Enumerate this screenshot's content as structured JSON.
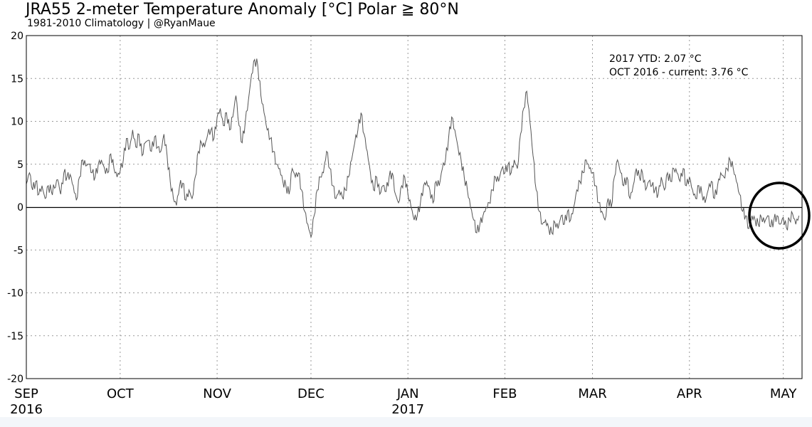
{
  "chart_data": {
    "type": "line",
    "title": "JRA55 2-meter Temperature Anomaly [°C] Polar ≧ 80°N",
    "subtitle": "1981-2010 Climatology | @RyanMaue",
    "xlabel": "",
    "ylabel": "",
    "ylim": [
      -20,
      20
    ],
    "yticks": [
      20,
      15,
      10,
      5,
      0,
      -5,
      -10,
      -15,
      -20
    ],
    "month_ticks": [
      {
        "label": "SEP",
        "year": "2016",
        "day": 0
      },
      {
        "label": "OCT",
        "year": "",
        "day": 30
      },
      {
        "label": "NOV",
        "year": "",
        "day": 61
      },
      {
        "label": "DEC",
        "year": "",
        "day": 91
      },
      {
        "label": "JAN",
        "year": "2017",
        "day": 122
      },
      {
        "label": "FEB",
        "year": "",
        "day": 153
      },
      {
        "label": "MAR",
        "year": "",
        "day": 181
      },
      {
        "label": "APR",
        "year": "",
        "day": 212
      },
      {
        "label": "MAY",
        "year": "",
        "day": 242
      }
    ],
    "x_domain_days": [
      0,
      248
    ],
    "grid": true,
    "zero_line": true,
    "annotations": [
      "2017 YTD: 2.07 °C",
      "OCT 2016 - current: 3.76 °C"
    ],
    "highlight": "circle around latest values (late APR – MAY)",
    "series": [
      {
        "color": "#555555",
        "points": [
          [
            0,
            2.7
          ],
          [
            1,
            4.0
          ],
          [
            2,
            2.0
          ],
          [
            3,
            3.0
          ],
          [
            4,
            1.5
          ],
          [
            5,
            2.5
          ],
          [
            6,
            1.0
          ],
          [
            7,
            2.5
          ],
          [
            8,
            1.8
          ],
          [
            9,
            2.2
          ],
          [
            10,
            3.2
          ],
          [
            11,
            1.5
          ],
          [
            12,
            4.0
          ],
          [
            13,
            3.5
          ],
          [
            14,
            3.8
          ],
          [
            15,
            2.5
          ],
          [
            16,
            0.8
          ],
          [
            17,
            3.5
          ],
          [
            18,
            5.5
          ],
          [
            19,
            4.8
          ],
          [
            20,
            5.0
          ],
          [
            21,
            4.0
          ],
          [
            22,
            3.5
          ],
          [
            23,
            5.0
          ],
          [
            24,
            5.5
          ],
          [
            25,
            4.5
          ],
          [
            26,
            4.0
          ],
          [
            27,
            6.2
          ],
          [
            28,
            4.5
          ],
          [
            29,
            3.5
          ],
          [
            30,
            4.2
          ],
          [
            31,
            5.5
          ],
          [
            32,
            8.0
          ],
          [
            33,
            6.8
          ],
          [
            34,
            9.0
          ],
          [
            35,
            7.0
          ],
          [
            36,
            8.5
          ],
          [
            37,
            6.0
          ],
          [
            38,
            7.5
          ],
          [
            39,
            7.8
          ],
          [
            40,
            6.5
          ],
          [
            41,
            8.2
          ],
          [
            42,
            7.0
          ],
          [
            43,
            6.5
          ],
          [
            44,
            8.5
          ],
          [
            45,
            6.0
          ],
          [
            46,
            3.0
          ],
          [
            47,
            1.0
          ],
          [
            48,
            0.2
          ],
          [
            49,
            2.5
          ],
          [
            50,
            2.8
          ],
          [
            51,
            0.8
          ],
          [
            52,
            2.0
          ],
          [
            53,
            1.0
          ],
          [
            54,
            3.5
          ],
          [
            55,
            6.5
          ],
          [
            56,
            7.5
          ],
          [
            57,
            7.0
          ],
          [
            58,
            8.5
          ],
          [
            59,
            9.0
          ],
          [
            60,
            8.0
          ],
          [
            61,
            10.5
          ],
          [
            62,
            11.5
          ],
          [
            63,
            9.5
          ],
          [
            64,
            11.0
          ],
          [
            65,
            9.0
          ],
          [
            66,
            10.5
          ],
          [
            67,
            13.0
          ],
          [
            68,
            9.5
          ],
          [
            69,
            7.5
          ],
          [
            70,
            10.0
          ],
          [
            71,
            12.5
          ],
          [
            72,
            15.5
          ],
          [
            73,
            17.2
          ],
          [
            74,
            16.5
          ],
          [
            75,
            13.0
          ],
          [
            76,
            11.0
          ],
          [
            77,
            9.0
          ],
          [
            78,
            8.0
          ],
          [
            79,
            6.5
          ],
          [
            80,
            5.0
          ],
          [
            81,
            4.5
          ],
          [
            82,
            3.0
          ],
          [
            83,
            2.5
          ],
          [
            84,
            1.5
          ],
          [
            85,
            4.5
          ],
          [
            86,
            3.5
          ],
          [
            87,
            4.0
          ],
          [
            88,
            2.0
          ],
          [
            89,
            -0.5
          ],
          [
            90,
            -2.0
          ],
          [
            91,
            -3.5
          ],
          [
            92,
            -1.0
          ],
          [
            93,
            2.0
          ],
          [
            94,
            3.5
          ],
          [
            95,
            4.0
          ],
          [
            96,
            6.5
          ],
          [
            97,
            4.5
          ],
          [
            98,
            2.5
          ],
          [
            99,
            1.0
          ],
          [
            100,
            2.0
          ],
          [
            101,
            1.2
          ],
          [
            102,
            2.0
          ],
          [
            103,
            3.5
          ],
          [
            104,
            5.5
          ],
          [
            105,
            7.5
          ],
          [
            106,
            9.0
          ],
          [
            107,
            11.0
          ],
          [
            108,
            8.5
          ],
          [
            109,
            6.5
          ],
          [
            110,
            4.0
          ],
          [
            111,
            2.0
          ],
          [
            112,
            3.5
          ],
          [
            113,
            1.5
          ],
          [
            114,
            2.5
          ],
          [
            115,
            1.8
          ],
          [
            116,
            3.5
          ],
          [
            117,
            4.0
          ],
          [
            118,
            1.5
          ],
          [
            119,
            0.5
          ],
          [
            120,
            2.5
          ],
          [
            121,
            3.5
          ],
          [
            122,
            1.5
          ],
          [
            123,
            0.0
          ],
          [
            124,
            -1.5
          ],
          [
            125,
            -1.0
          ],
          [
            126,
            0.5
          ],
          [
            127,
            2.5
          ],
          [
            128,
            3.0
          ],
          [
            129,
            2.0
          ],
          [
            130,
            0.5
          ],
          [
            131,
            3.0
          ],
          [
            132,
            2.5
          ],
          [
            133,
            4.5
          ],
          [
            134,
            5.5
          ],
          [
            135,
            8.0
          ],
          [
            136,
            10.5
          ],
          [
            137,
            9.0
          ],
          [
            138,
            7.0
          ],
          [
            139,
            5.5
          ],
          [
            140,
            3.5
          ],
          [
            141,
            2.0
          ],
          [
            142,
            0.0
          ],
          [
            143,
            -1.5
          ],
          [
            144,
            -3.0
          ],
          [
            145,
            -2.0
          ],
          [
            146,
            -1.0
          ],
          [
            147,
            0.0
          ],
          [
            148,
            0.5
          ],
          [
            149,
            2.0
          ],
          [
            150,
            3.5
          ],
          [
            151,
            3.0
          ],
          [
            152,
            4.5
          ],
          [
            153,
            4.0
          ],
          [
            154,
            5.0
          ],
          [
            155,
            4.0
          ],
          [
            156,
            5.5
          ],
          [
            157,
            4.5
          ],
          [
            158,
            8.5
          ],
          [
            159,
            11.5
          ],
          [
            160,
            13.5
          ],
          [
            161,
            10.0
          ],
          [
            162,
            6.0
          ],
          [
            163,
            2.0
          ],
          [
            164,
            -0.5
          ],
          [
            165,
            -2.0
          ],
          [
            166,
            -1.5
          ],
          [
            167,
            -2.5
          ],
          [
            168,
            -3.0
          ],
          [
            169,
            -1.8
          ],
          [
            170,
            -2.5
          ],
          [
            171,
            -1.0
          ],
          [
            172,
            -2.0
          ],
          [
            173,
            -0.5
          ],
          [
            174,
            -1.5
          ],
          [
            175,
            0.0
          ],
          [
            176,
            2.0
          ],
          [
            177,
            3.0
          ],
          [
            178,
            4.0
          ],
          [
            179,
            5.5
          ],
          [
            180,
            4.5
          ],
          [
            181,
            4.0
          ],
          [
            182,
            2.5
          ],
          [
            183,
            0.5
          ],
          [
            184,
            -0.5
          ],
          [
            185,
            -1.5
          ],
          [
            186,
            1.0
          ],
          [
            187,
            0.0
          ],
          [
            188,
            3.5
          ],
          [
            189,
            5.5
          ],
          [
            190,
            4.0
          ],
          [
            191,
            2.5
          ],
          [
            192,
            3.5
          ],
          [
            193,
            1.0
          ],
          [
            194,
            2.5
          ],
          [
            195,
            4.5
          ],
          [
            196,
            3.5
          ],
          [
            197,
            4.0
          ],
          [
            198,
            2.0
          ],
          [
            199,
            3.0
          ],
          [
            200,
            2.5
          ],
          [
            201,
            2.0
          ],
          [
            202,
            1.5
          ],
          [
            203,
            3.5
          ],
          [
            204,
            2.0
          ],
          [
            205,
            4.0
          ],
          [
            206,
            3.0
          ],
          [
            207,
            4.5
          ],
          [
            208,
            4.0
          ],
          [
            209,
            3.0
          ],
          [
            210,
            4.5
          ],
          [
            211,
            2.5
          ],
          [
            212,
            3.5
          ],
          [
            213,
            2.0
          ],
          [
            214,
            1.0
          ],
          [
            215,
            2.5
          ],
          [
            216,
            1.5
          ],
          [
            217,
            0.5
          ],
          [
            218,
            2.0
          ],
          [
            219,
            3.0
          ],
          [
            220,
            1.0
          ],
          [
            221,
            2.5
          ],
          [
            222,
            4.0
          ],
          [
            223,
            3.5
          ],
          [
            224,
            4.5
          ],
          [
            225,
            5.5
          ],
          [
            226,
            4.5
          ],
          [
            227,
            3.0
          ],
          [
            228,
            1.5
          ],
          [
            229,
            -0.5
          ],
          [
            230,
            -1.0
          ],
          [
            231,
            -2.5
          ],
          [
            232,
            -1.0
          ],
          [
            233,
            -1.5
          ],
          [
            234,
            -2.0
          ],
          [
            235,
            -1.2
          ],
          [
            236,
            -1.8
          ],
          [
            237,
            -1.0
          ],
          [
            238,
            -2.3
          ],
          [
            239,
            -1.5
          ],
          [
            240,
            -1.0
          ],
          [
            241,
            -2.0
          ],
          [
            242,
            -1.2
          ],
          [
            243,
            -2.4
          ],
          [
            244,
            -1.5
          ],
          [
            245,
            -0.8
          ],
          [
            246,
            -2.0
          ],
          [
            247,
            -1.0
          ]
        ]
      }
    ]
  }
}
